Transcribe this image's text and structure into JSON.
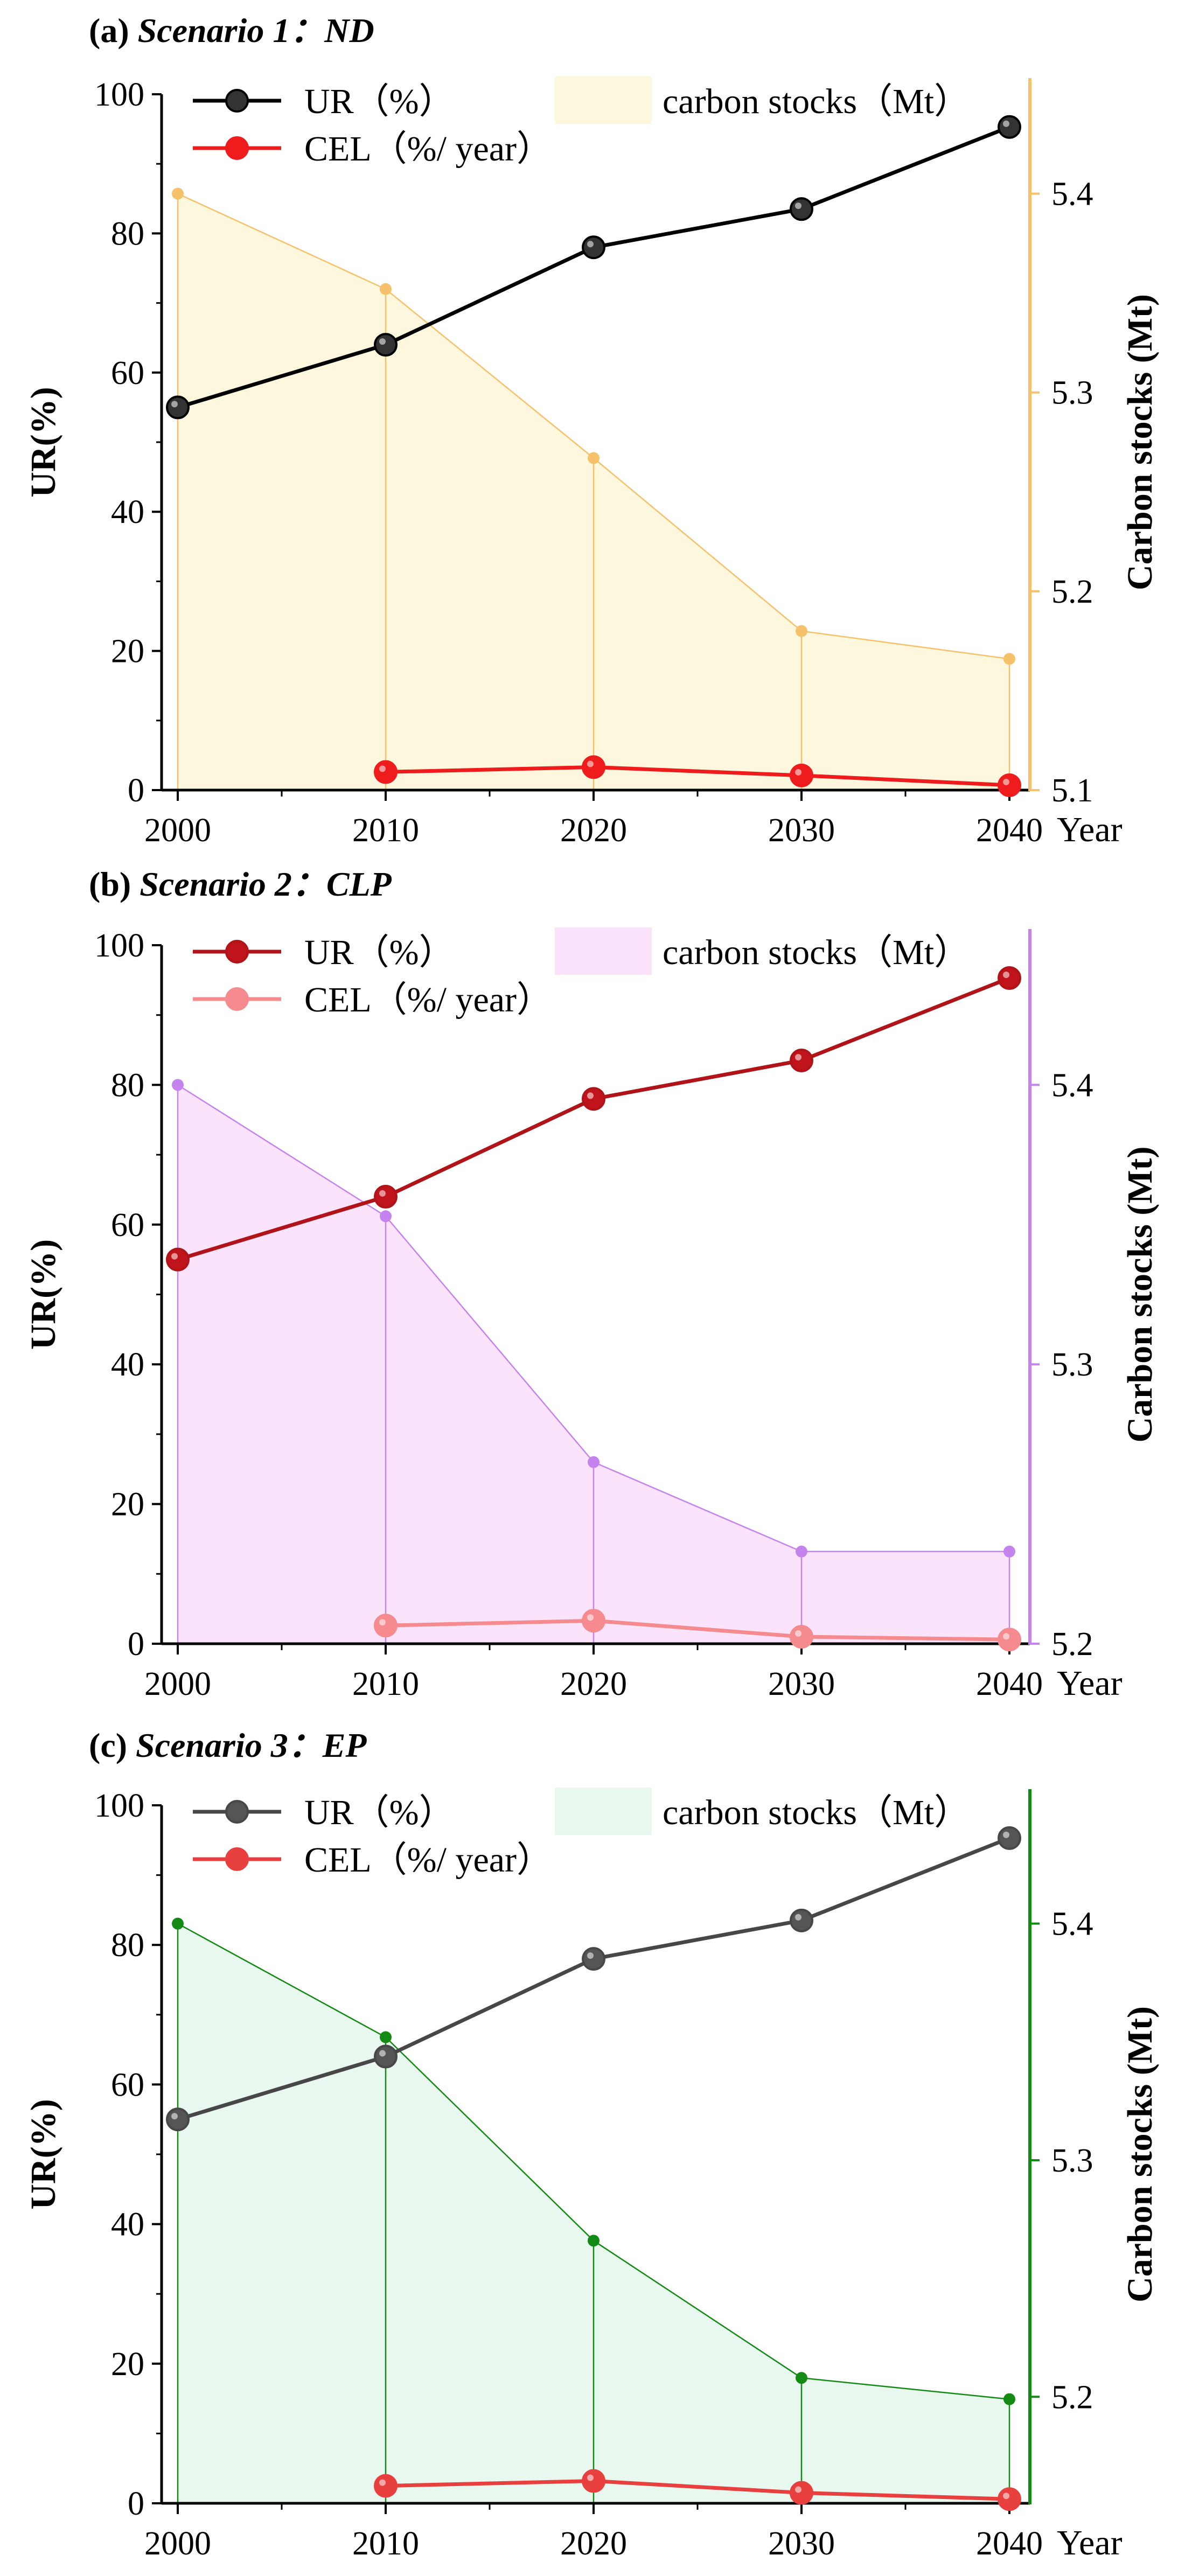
{
  "colors": {
    "axis": "#000000"
  },
  "chart_data": [
    {
      "type": "line",
      "panel_label": "(a)",
      "scenario": "Scenario 1",
      "scenario_code": "ND",
      "x": [
        2000,
        2010,
        2020,
        2030,
        2040
      ],
      "x_tick_labels": [
        "2000",
        "2010",
        "2020",
        "2030",
        "2040"
      ],
      "x_end_label": "Year",
      "xlim": [
        2000,
        2040
      ],
      "ylabel": "UR(%)",
      "ylim": [
        0,
        100
      ],
      "y_ticks": [
        0,
        20,
        40,
        60,
        80,
        100
      ],
      "y_tick_labels": [
        "0",
        "20",
        "40",
        "60",
        "80",
        "100"
      ],
      "ylabel_right": "Carbon stocks (Mt)",
      "ylim_right": [
        5.1,
        5.45
      ],
      "y_ticks_right": [
        5.1,
        5.2,
        5.3,
        5.4
      ],
      "y_tick_labels_right": [
        "5.1",
        "5.2",
        "5.3",
        "5.4"
      ],
      "legend_position": "top",
      "series": [
        {
          "name": "UR（%）",
          "axis": "left",
          "values": [
            55,
            64,
            78,
            83.5,
            95.3
          ],
          "color": "#000000",
          "marker_fill": "#333333"
        },
        {
          "name": "CEL（%/ year）",
          "axis": "left",
          "values": [
            null,
            2.6,
            3.3,
            2.1,
            0.7
          ],
          "color": "#ee1c1c",
          "marker_fill": "#ee1c1c"
        },
        {
          "name": "carbon stocks（Mt）",
          "axis": "right",
          "kind": "area",
          "values": [
            5.4,
            5.352,
            5.267,
            5.18,
            5.166
          ],
          "color": "#f5c16b",
          "fill": "#fdf8dd"
        }
      ]
    },
    {
      "type": "line",
      "panel_label": "(b)",
      "scenario": "Scenario 2",
      "scenario_code": "CLP",
      "x": [
        2000,
        2010,
        2020,
        2030,
        2040
      ],
      "x_tick_labels": [
        "2000",
        "2010",
        "2020",
        "2030",
        "2040"
      ],
      "x_end_label": "Year",
      "xlim": [
        2000,
        2040
      ],
      "ylabel": "UR(%)",
      "ylim": [
        0,
        100
      ],
      "y_ticks": [
        0,
        20,
        40,
        60,
        80,
        100
      ],
      "y_tick_labels": [
        "0",
        "20",
        "40",
        "60",
        "80",
        "100"
      ],
      "ylabel_right": "Carbon stocks (Mt)",
      "ylim_right": [
        5.2,
        5.45
      ],
      "y_ticks_right": [
        5.2,
        5.3,
        5.4
      ],
      "y_tick_labels_right": [
        "5.2",
        "5.3",
        "5.4"
      ],
      "legend_position": "top",
      "series": [
        {
          "name": "UR（%）",
          "axis": "left",
          "values": [
            55,
            64,
            78,
            83.5,
            95.3
          ],
          "color": "#b01418",
          "marker_fill": "#c0141c"
        },
        {
          "name": "CEL（%/ year）",
          "axis": "left",
          "values": [
            null,
            2.6,
            3.3,
            1.0,
            0.6
          ],
          "color": "#f58a8f",
          "marker_fill": "#f58a8f"
        },
        {
          "name": "carbon stocks（Mt）",
          "axis": "right",
          "kind": "area",
          "values": [
            5.4,
            5.353,
            5.265,
            5.233,
            5.233
          ],
          "color": "#c583ee",
          "fill": "#fbe4fb"
        }
      ]
    },
    {
      "type": "line",
      "panel_label": "(c)",
      "scenario": "Scenario 3",
      "scenario_code": "EP",
      "x": [
        2000,
        2010,
        2020,
        2030,
        2040
      ],
      "x_tick_labels": [
        "2000",
        "2010",
        "2020",
        "2030",
        "2040"
      ],
      "x_end_label": "Year",
      "xlim": [
        2000,
        2040
      ],
      "ylabel": "UR(%)",
      "ylim": [
        0,
        100
      ],
      "y_ticks": [
        0,
        20,
        40,
        60,
        80,
        100
      ],
      "y_tick_labels": [
        "0",
        "20",
        "40",
        "60",
        "80",
        "100"
      ],
      "ylabel_right": "Carbon stocks (Mt)",
      "ylim_right": [
        5.155,
        5.45
      ],
      "y_ticks_right": [
        5.2,
        5.3,
        5.4
      ],
      "y_tick_labels_right": [
        "5.2",
        "5.3",
        "5.4"
      ],
      "legend_position": "top",
      "series": [
        {
          "name": "UR（%）",
          "axis": "left",
          "values": [
            55,
            64,
            78,
            83.5,
            95.3
          ],
          "color": "#474747",
          "marker_fill": "#555555"
        },
        {
          "name": "CEL（%/ year）",
          "axis": "left",
          "values": [
            null,
            2.5,
            3.2,
            1.5,
            0.6
          ],
          "color": "#e8403e",
          "marker_fill": "#e8403e"
        },
        {
          "name": "carbon stocks（Mt）",
          "axis": "right",
          "kind": "area",
          "values": [
            5.4,
            5.352,
            5.266,
            5.208,
            5.199
          ],
          "color": "#138a13",
          "fill": "#e8f8ee"
        }
      ]
    }
  ]
}
